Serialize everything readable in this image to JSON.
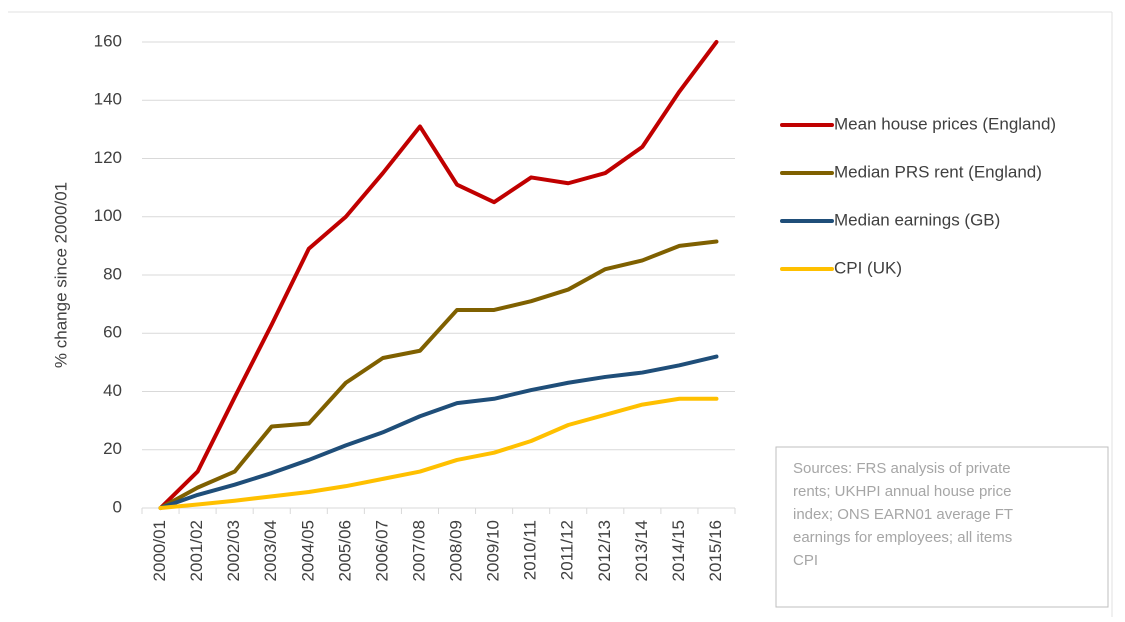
{
  "chart_data": {
    "type": "line",
    "y_label": "% change since 2000/01",
    "categories": [
      "2000/01",
      "2001/02",
      "2002/03",
      "2003/04",
      "2004/05",
      "2005/06",
      "2006/07",
      "2007/08",
      "2008/09",
      "2009/10",
      "2010/11",
      "2011/12",
      "2012/13",
      "2013/14",
      "2014/15",
      "2015/16"
    ],
    "series": [
      {
        "name": "Mean house prices (England)",
        "color": "#c00000",
        "values": [
          0,
          12.5,
          38,
          63,
          89,
          100,
          115,
          131,
          111,
          105,
          113.5,
          111.5,
          115,
          124,
          143,
          160
        ]
      },
      {
        "name": "Median PRS rent (England)",
        "color": "#7f6000",
        "values": [
          0,
          7,
          12.5,
          28,
          29,
          43,
          51.5,
          54,
          68,
          68,
          71,
          75,
          82,
          85,
          90,
          91.5
        ]
      },
      {
        "name": "Median earnings (GB)",
        "color": "#1f4e79",
        "values": [
          0,
          4.5,
          8,
          12,
          16.5,
          21.5,
          26,
          31.5,
          36,
          37.5,
          40.5,
          43,
          45,
          46.5,
          49,
          52
        ]
      },
      {
        "name": "CPI (UK)",
        "color": "#ffc000",
        "values": [
          0,
          1.2,
          2.5,
          4,
          5.5,
          7.5,
          10,
          12.5,
          16.5,
          19,
          23,
          28.5,
          32,
          35.5,
          37.5,
          37.5
        ]
      }
    ],
    "ylim": [
      0,
      160
    ],
    "yticks": [
      0,
      20,
      40,
      60,
      80,
      100,
      120,
      140,
      160
    ],
    "grid": true,
    "legend": "right",
    "annotation_lines": [
      "Sources: FRS analysis of private",
      "rents; UKHPI annual house price",
      "index; ONS EARN01 average FT",
      "earnings for employees; all items",
      "CPI"
    ]
  }
}
